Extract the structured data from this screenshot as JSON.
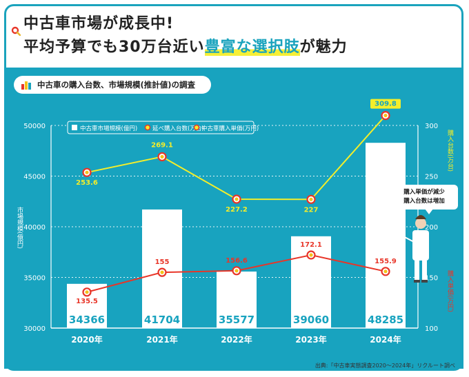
{
  "header": {
    "line1": "中古車市場が成長中!",
    "line2_pre": "平均予算でも30万台近い",
    "line2_highlight": "豊富な選択肢",
    "line2_post": "が魅力",
    "accent_color": "#1aa3bd",
    "highlight_color": "#f6ef36",
    "icon": "search-icon"
  },
  "subtitle": {
    "text": "中古車の購入台数、市場規模(推計値)の調査",
    "icon": "bar-chart-icon"
  },
  "bubble": {
    "line1": "購入単価が減少",
    "line2": "購入台数は増加"
  },
  "source": "出典:「中古車実態調査2020〜2024年」リクルート調べ",
  "chart_data": {
    "type": "bar+line",
    "categories": [
      "2020年",
      "2021年",
      "2022年",
      "2023年",
      "2024年"
    ],
    "left_axis": {
      "label": "市場規模(億円)",
      "ylim": [
        30000,
        50000
      ],
      "ticks": [
        30000,
        35000,
        40000,
        45000,
        50000
      ]
    },
    "right_axis": {
      "label_top": "購入台数(万台)",
      "label_bottom": "購入単価(万円)",
      "ylim": [
        100,
        300
      ],
      "ticks": [
        100,
        150,
        200,
        250,
        300
      ]
    },
    "legend": [
      "中古車市場規模(億円)",
      "延べ購入台数(万台)",
      "中古車購入単価(万円)"
    ],
    "series": [
      {
        "name": "中古車市場規模(億円)",
        "type": "bar",
        "axis": "left",
        "values": [
          34366,
          41704,
          35577,
          39060,
          48285
        ],
        "color": "#ffffff",
        "label_color": "#18a3bf"
      },
      {
        "name": "延べ購入台数(万台)",
        "type": "line",
        "axis": "right",
        "values": [
          253.6,
          269.1,
          227.2,
          227,
          309.8
        ],
        "color": "#f4ee2a"
      },
      {
        "name": "中古車購入単価(万円)",
        "type": "line",
        "axis": "right",
        "values": [
          135.5,
          155,
          156.6,
          172.1,
          155.9
        ],
        "color": "#e83528"
      }
    ],
    "grid": true,
    "legend_position": "top-left"
  }
}
